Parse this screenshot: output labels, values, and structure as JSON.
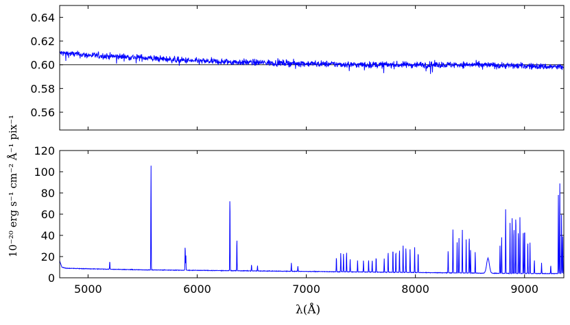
{
  "chart_data": [
    {
      "type": "line",
      "panel": "top",
      "xlim": [
        4740,
        9360
      ],
      "ylim": [
        0.545,
        0.65
      ],
      "y_ticks": [
        "0.56",
        "0.58",
        "0.60",
        "0.62",
        "0.64"
      ],
      "y_tick_values": [
        0.56,
        0.58,
        0.6,
        0.62,
        0.64
      ],
      "reference_line_y": 0.6,
      "series": [
        {
          "color": "#0000ff",
          "trend_x": [
            4740,
            5000,
            5500,
            6000,
            6500,
            7000,
            7500,
            8000,
            8500,
            9000,
            9360
          ],
          "trend_y": [
            0.61,
            0.608,
            0.606,
            0.603,
            0.602,
            0.601,
            0.6,
            0.6,
            0.6,
            0.599,
            0.598
          ],
          "noise_amplitude": 0.0045
        }
      ]
    },
    {
      "type": "line",
      "panel": "bottom",
      "xlabel": "λ(Å)",
      "ylabel": "10⁻²⁰ erg s⁻¹ cm⁻² Å⁻¹ pix⁻¹",
      "xlim": [
        4740,
        9360
      ],
      "ylim": [
        0,
        120
      ],
      "x_ticks": [
        "5000",
        "6000",
        "7000",
        "8000",
        "9000"
      ],
      "x_tick_values": [
        5000,
        6000,
        7000,
        8000,
        9000
      ],
      "y_ticks": [
        "0",
        "20",
        "40",
        "60",
        "80",
        "100",
        "120"
      ],
      "y_tick_values": [
        0,
        20,
        40,
        60,
        80,
        100,
        120
      ],
      "continuum_x": [
        4740,
        4760,
        4800,
        5000,
        5500,
        6000,
        6500,
        7000,
        7500,
        8000,
        8500,
        9000,
        9360
      ],
      "continuum_y": [
        16,
        10,
        9,
        8.5,
        7.5,
        7,
        6.5,
        6,
        5.5,
        5,
        4.5,
        4,
        4
      ],
      "emission_lines": [
        {
          "x": 5199,
          "y": 12
        },
        {
          "x": 5577,
          "y": 105
        },
        {
          "x": 5890,
          "y": 28
        },
        {
          "x": 5896,
          "y": 20
        },
        {
          "x": 6300,
          "y": 77
        },
        {
          "x": 6364,
          "y": 35
        },
        {
          "x": 6498,
          "y": 10
        },
        {
          "x": 6553,
          "y": 9
        },
        {
          "x": 6863,
          "y": 12
        },
        {
          "x": 6923,
          "y": 9
        },
        {
          "x": 7276,
          "y": 18
        },
        {
          "x": 7316,
          "y": 22
        },
        {
          "x": 7341,
          "y": 21
        },
        {
          "x": 7369,
          "y": 23
        },
        {
          "x": 7402,
          "y": 16
        },
        {
          "x": 7470,
          "y": 15
        },
        {
          "x": 7524,
          "y": 15
        },
        {
          "x": 7571,
          "y": 16
        },
        {
          "x": 7604,
          "y": 15
        },
        {
          "x": 7640,
          "y": 19
        },
        {
          "x": 7714,
          "y": 17
        },
        {
          "x": 7750,
          "y": 24
        },
        {
          "x": 7794,
          "y": 27
        },
        {
          "x": 7821,
          "y": 25
        },
        {
          "x": 7854,
          "y": 26
        },
        {
          "x": 7887,
          "y": 30
        },
        {
          "x": 7913,
          "y": 28
        },
        {
          "x": 7951,
          "y": 26
        },
        {
          "x": 7993,
          "y": 28
        },
        {
          "x": 8025,
          "y": 24
        },
        {
          "x": 8300,
          "y": 26
        },
        {
          "x": 8344,
          "y": 46
        },
        {
          "x": 8382,
          "y": 33
        },
        {
          "x": 8399,
          "y": 38
        },
        {
          "x": 8430,
          "y": 45
        },
        {
          "x": 8465,
          "y": 36
        },
        {
          "x": 8493,
          "y": 40
        },
        {
          "x": 8505,
          "y": 26
        },
        {
          "x": 8548,
          "y": 24
        },
        {
          "x": 8775,
          "y": 30
        },
        {
          "x": 8790,
          "y": 38
        },
        {
          "x": 8827,
          "y": 65
        },
        {
          "x": 8867,
          "y": 52
        },
        {
          "x": 8886,
          "y": 58
        },
        {
          "x": 8903,
          "y": 50
        },
        {
          "x": 8920,
          "y": 62
        },
        {
          "x": 8943,
          "y": 46
        },
        {
          "x": 8958,
          "y": 58
        },
        {
          "x": 8988,
          "y": 44
        },
        {
          "x": 9001,
          "y": 50
        },
        {
          "x": 9030,
          "y": 36
        },
        {
          "x": 9050,
          "y": 33
        },
        {
          "x": 9090,
          "y": 17
        },
        {
          "x": 9156,
          "y": 14
        },
        {
          "x": 9240,
          "y": 12
        },
        {
          "x": 9310,
          "y": 78
        },
        {
          "x": 9323,
          "y": 92
        },
        {
          "x": 9339,
          "y": 60
        },
        {
          "x": 9350,
          "y": 40
        }
      ],
      "broad_features": [
        {
          "x": 8665,
          "y": 18,
          "width": 25
        }
      ]
    }
  ]
}
